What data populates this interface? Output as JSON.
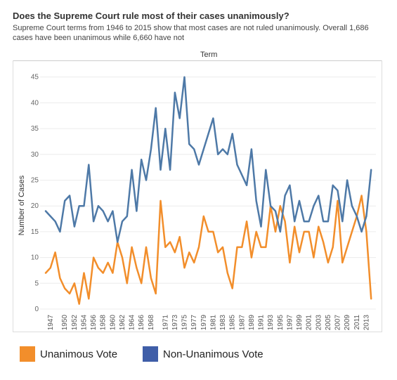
{
  "header": {
    "title": "Does the Supreme Court rule most of their cases unanimously?",
    "subtitle": "Supreme Court terms from 1946 to 2015 show that most cases are not ruled unanimously. Overall 1,686 cases have been unanimous while 6,660 have not"
  },
  "legend": {
    "unanimous_label": "Unanimous Vote",
    "non_unanimous_label": "Non-Unanimous Vote"
  },
  "chart_data": {
    "type": "line",
    "xlabel": "Term",
    "ylabel": "Number of Cases",
    "ylim": [
      0,
      47
    ],
    "yticks": [
      0,
      5,
      10,
      15,
      20,
      25,
      30,
      35,
      40,
      45
    ],
    "grid": true,
    "x": [
      1946,
      1947,
      1948,
      1949,
      1950,
      1951,
      1952,
      1953,
      1954,
      1955,
      1956,
      1957,
      1958,
      1959,
      1960,
      1961,
      1962,
      1963,
      1964,
      1965,
      1966,
      1967,
      1968,
      1969,
      1970,
      1971,
      1972,
      1973,
      1974,
      1975,
      1976,
      1977,
      1978,
      1979,
      1980,
      1981,
      1982,
      1983,
      1984,
      1985,
      1986,
      1987,
      1988,
      1989,
      1990,
      1991,
      1992,
      1993,
      1994,
      1995,
      1996,
      1997,
      1998,
      1999,
      2000,
      2001,
      2002,
      2003,
      2004,
      2005,
      2006,
      2007,
      2008,
      2009,
      2010,
      2011,
      2012,
      2013,
      2014,
      2015
    ],
    "x_tick_labels": [
      "1947",
      "1950",
      "1952",
      "1954",
      "1956",
      "1958",
      "1960",
      "1962",
      "1964",
      "1966",
      "1968",
      "1971",
      "1973",
      "1975",
      "1977",
      "1979",
      "1981",
      "1983",
      "1985",
      "1987",
      "1989",
      "1991",
      "1993",
      "1995",
      "1997",
      "1999",
      "2001",
      "2003",
      "2005",
      "2007",
      "2009",
      "2011",
      "2013"
    ],
    "series": [
      {
        "name": "Unanimous Vote",
        "color": "#f28e2b",
        "values": [
          7,
          8,
          11,
          6,
          4,
          3,
          5,
          1,
          7,
          2,
          10,
          8,
          7,
          9,
          7,
          13,
          10,
          5,
          12,
          8,
          5,
          12,
          6,
          3,
          21,
          12,
          13,
          11,
          14,
          8,
          11,
          9,
          12,
          18,
          15,
          15,
          11,
          12,
          7,
          4,
          12,
          12,
          17,
          10,
          15,
          12,
          12,
          20,
          15,
          20,
          17,
          9,
          16,
          11,
          15,
          15,
          10,
          16,
          13,
          9,
          12,
          21,
          9,
          12,
          15,
          18,
          22,
          15,
          2,
          null
        ],
        "stroke_width": 2.5
      },
      {
        "name": "Non-Unanimous Vote",
        "color": "#4e79a7",
        "values": [
          19,
          18,
          17,
          15,
          21,
          22,
          16,
          20,
          20,
          28,
          17,
          20,
          19,
          17,
          19,
          13,
          17,
          18,
          27,
          19,
          29,
          25,
          31,
          39,
          27,
          35,
          27,
          42,
          37,
          45,
          32,
          31,
          28,
          31,
          34,
          37,
          30,
          31,
          30,
          34,
          28,
          26,
          24,
          31,
          21,
          16,
          27,
          20,
          19,
          15,
          22,
          24,
          17,
          21,
          17,
          17,
          20,
          22,
          17,
          17,
          24,
          23,
          17,
          25,
          20,
          18,
          15,
          18,
          27,
          null
        ],
        "stroke_width": 2.5
      }
    ]
  }
}
